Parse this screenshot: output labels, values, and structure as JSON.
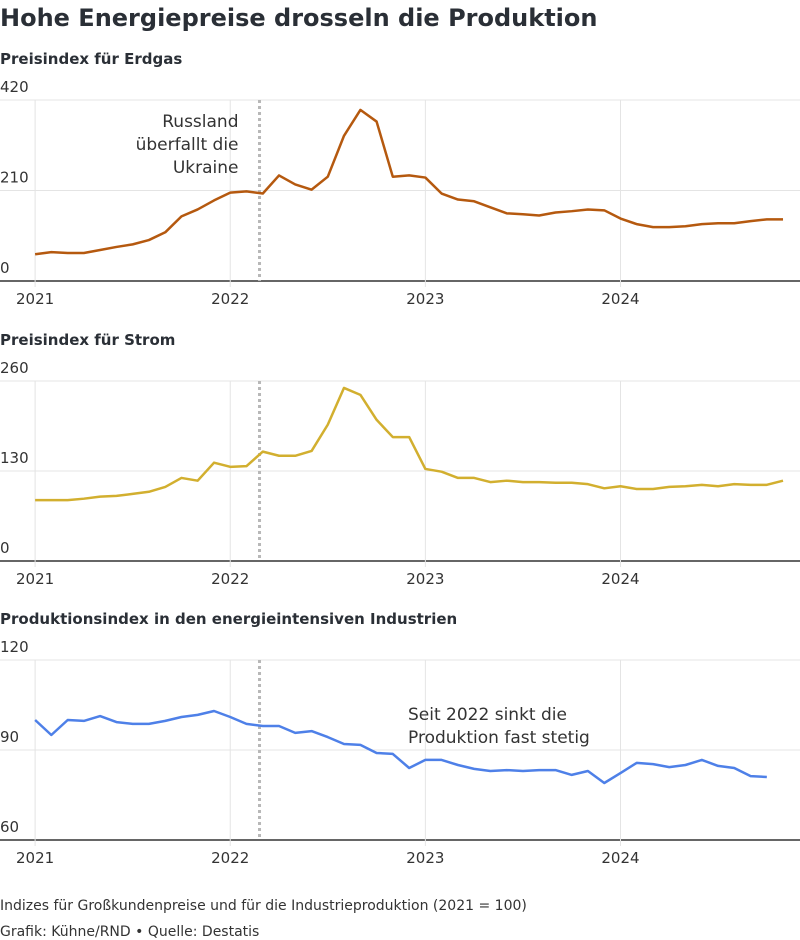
{
  "title": "Hohe Energiepreise drosseln die Produktion",
  "note": "Indizes für Großkundenpreise und für die Industrieproduktion (2021 = 100)",
  "credit": "Grafik: Kühne/RND • Quelle: Destatis",
  "chart_data": [
    {
      "type": "line",
      "subtitle": "Preisindex für Erdgas",
      "color": "#b5590f",
      "x": [
        2021,
        2021.083,
        2021.167,
        2021.25,
        2021.333,
        2021.417,
        2021.5,
        2021.583,
        2021.667,
        2021.75,
        2021.833,
        2021.917,
        2022,
        2022.083,
        2022.167,
        2022.25,
        2022.333,
        2022.417,
        2022.5,
        2022.583,
        2022.667,
        2022.75,
        2022.833,
        2022.917,
        2023,
        2023.083,
        2023.167,
        2023.25,
        2023.333,
        2023.417,
        2023.5,
        2023.583,
        2023.667,
        2023.75,
        2023.833,
        2023.917,
        2024,
        2024.083,
        2024.167,
        2024.25,
        2024.333,
        2024.417,
        2024.5,
        2024.583,
        2024.667,
        2024.75,
        2024.833
      ],
      "values": [
        62,
        67,
        65,
        65,
        72,
        79,
        85,
        95,
        113,
        150,
        166,
        187,
        205,
        208,
        203,
        245,
        224,
        212,
        242,
        337,
        397,
        370,
        242,
        245,
        240,
        203,
        189,
        185,
        171,
        157,
        155,
        152,
        159,
        162,
        166,
        164,
        145,
        132,
        125,
        125,
        127,
        132,
        134,
        134,
        139,
        143,
        143
      ],
      "xlim": [
        2020.82,
        2024.92
      ],
      "xticks": [
        2021,
        2022,
        2023,
        2024
      ],
      "ylim": [
        0,
        420
      ],
      "yticks": [
        0,
        210,
        420
      ],
      "grid": true,
      "event": {
        "x": 2022.15,
        "label": [
          "Russland",
          "überfallt die",
          "Ukraine"
        ]
      }
    },
    {
      "type": "line",
      "subtitle": "Preisindex für Strom",
      "color": "#d2af2f",
      "x": [
        2021,
        2021.083,
        2021.167,
        2021.25,
        2021.333,
        2021.417,
        2021.5,
        2021.583,
        2021.667,
        2021.75,
        2021.833,
        2021.917,
        2022,
        2022.083,
        2022.167,
        2022.25,
        2022.333,
        2022.417,
        2022.5,
        2022.583,
        2022.667,
        2022.75,
        2022.833,
        2022.917,
        2023,
        2023.083,
        2023.167,
        2023.25,
        2023.333,
        2023.417,
        2023.5,
        2023.583,
        2023.667,
        2023.75,
        2023.833,
        2023.917,
        2024,
        2024.083,
        2024.167,
        2024.25,
        2024.333,
        2024.417,
        2024.5,
        2024.583,
        2024.667,
        2024.75,
        2024.833
      ],
      "values": [
        88,
        88,
        88,
        90,
        93,
        94,
        97,
        100,
        107,
        120,
        116,
        142,
        136,
        137,
        158,
        152,
        152,
        159,
        197,
        250,
        240,
        204,
        179,
        179,
        133,
        129,
        120,
        120,
        114,
        116,
        114,
        114,
        113,
        113,
        111,
        105,
        108,
        104,
        104,
        107,
        108,
        110,
        108,
        111,
        110,
        110,
        116
      ],
      "xlim": [
        2020.82,
        2024.92
      ],
      "xticks": [
        2021,
        2022,
        2023,
        2024
      ],
      "ylim": [
        0,
        260
      ],
      "yticks": [
        0,
        130,
        260
      ],
      "grid": true,
      "event": {
        "x": 2022.15
      }
    },
    {
      "type": "line",
      "subtitle": "Produktionsindex in den energieintensiven Industrien",
      "color": "#4e80e8",
      "x": [
        2021,
        2021.083,
        2021.167,
        2021.25,
        2021.333,
        2021.417,
        2021.5,
        2021.583,
        2021.667,
        2021.75,
        2021.833,
        2021.917,
        2022,
        2022.083,
        2022.167,
        2022.25,
        2022.333,
        2022.417,
        2022.5,
        2022.583,
        2022.667,
        2022.75,
        2022.833,
        2022.917,
        2023,
        2023.083,
        2023.167,
        2023.25,
        2023.333,
        2023.417,
        2023.5,
        2023.583,
        2023.667,
        2023.75,
        2023.833,
        2023.917,
        2024,
        2024.083,
        2024.167,
        2024.25,
        2024.333,
        2024.417,
        2024.5,
        2024.583,
        2024.667,
        2024.75
      ],
      "values": [
        100,
        95,
        100,
        99.7,
        101.3,
        99.3,
        98.7,
        98.7,
        99.7,
        101,
        101.7,
        103,
        101,
        98.7,
        98,
        98,
        95.7,
        96.3,
        94.3,
        92,
        91.7,
        89,
        88.7,
        84,
        86.7,
        86.7,
        85,
        83.7,
        83,
        83.3,
        83,
        83.3,
        83.3,
        81.7,
        83,
        79,
        82.3,
        85.7,
        85.3,
        84.3,
        85,
        86.7,
        84.7,
        84,
        81.3,
        81
      ],
      "xlim": [
        2020.82,
        2024.92
      ],
      "xticks": [
        2021,
        2022,
        2023,
        2024
      ],
      "ylim": [
        60,
        120
      ],
      "yticks": [
        60,
        90,
        120
      ],
      "grid": true,
      "event": {
        "x": 2022.15
      },
      "annotation": [
        "Seit 2022 sinkt die",
        "Produktion fast stetig"
      ]
    }
  ]
}
